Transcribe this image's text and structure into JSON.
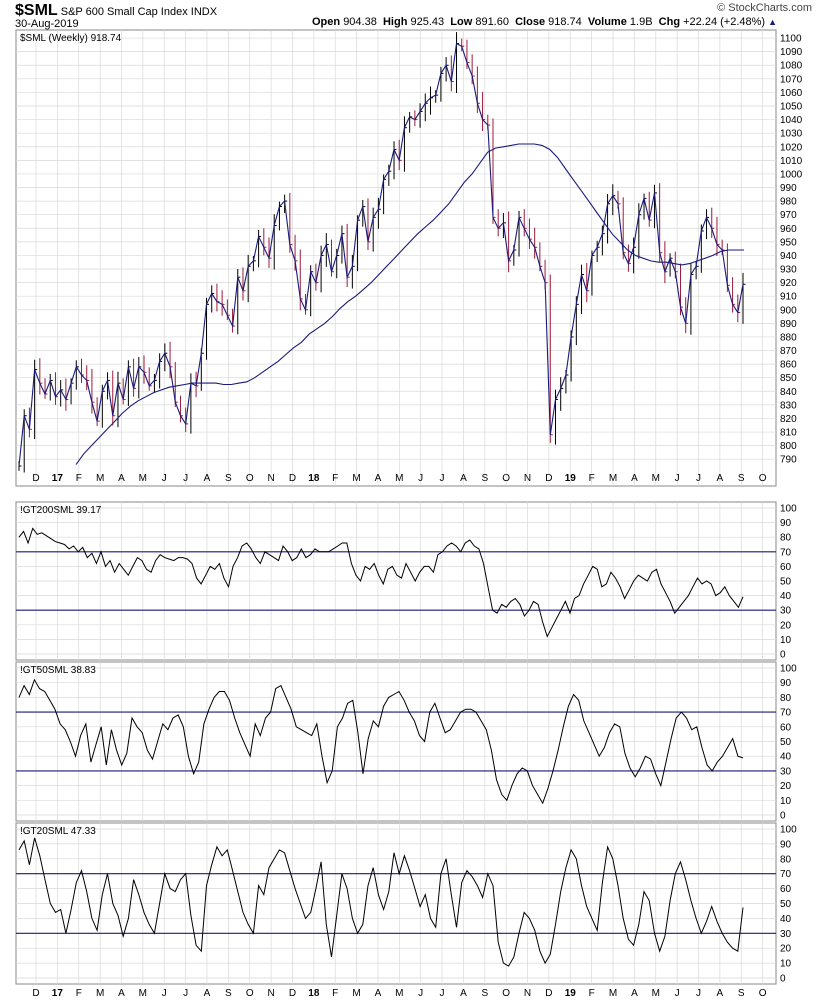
{
  "header": {
    "symbol": "$SML",
    "name": "S&P 600 Small Cap Index",
    "exchange": "INDX",
    "date": "30-Aug-2019",
    "open_label": "Open",
    "open_value": "904.38",
    "high_label": "High",
    "high_value": "925.43",
    "low_label": "Low",
    "low_value": "891.60",
    "close_label": "Close",
    "close_value": "918.74",
    "volume_label": "Volume",
    "volume_value": "1.9B",
    "chg_label": "Chg",
    "chg_value": "+22.24 (+2.48%)",
    "chg_icon": "up-triangle-icon",
    "brand": "© StockCharts.com"
  },
  "colors": {
    "price": "#1a1a7a",
    "ma": "#1a1a7a",
    "down_bar": "#9b1b3b",
    "hline": "#1a1a7a",
    "grid": "#d9d9d9",
    "indicator": "#000000"
  },
  "chart_data": [
    {
      "type": "line",
      "title": "$SML (Weekly) 918.74",
      "series": [
        {
          "name": "$SML (Weekly) 918.74",
          "values": [
            785,
            822,
            812,
            856,
            846,
            838,
            848,
            836,
            841,
            834,
            846,
            858,
            852,
            848,
            832,
            818,
            840,
            848,
            822,
            846,
            834,
            858,
            842,
            858,
            854,
            844,
            848,
            862,
            868,
            858,
            832,
            822,
            816,
            846,
            844,
            868,
            904,
            912,
            906,
            904,
            896,
            888,
            924,
            914,
            932,
            936,
            954,
            946,
            938,
            962,
            976,
            980,
            948,
            936,
            908,
            900,
            928,
            920,
            940,
            948,
            928,
            940,
            956,
            924,
            932,
            966,
            976,
            950,
            968,
            974,
            996,
            1002,
            1018,
            1010,
            1034,
            1042,
            1040,
            1046,
            1052,
            1056,
            1058,
            1074,
            1080,
            1068,
            1096,
            1094,
            1082,
            1072,
            1052,
            1040,
            1036,
            968,
            960,
            964,
            936,
            944,
            968,
            960,
            952,
            946,
            932,
            920,
            808,
            834,
            842,
            852,
            880,
            904,
            926,
            914,
            940,
            946,
            956,
            978,
            984,
            978,
            942,
            934,
            946,
            970,
            982,
            966,
            986,
            942,
            928,
            938,
            928,
            902,
            890,
            926,
            932,
            958,
            968,
            960,
            948,
            944,
            918,
            904,
            898,
            918.74
          ]
        }
      ],
      "ma_values": [
        786,
        794,
        800,
        806,
        812,
        818,
        824,
        829,
        833,
        836,
        839,
        841,
        843,
        844,
        845,
        846,
        846,
        846,
        846,
        845,
        845,
        846,
        847,
        850,
        854,
        858,
        862,
        867,
        872,
        876,
        882,
        886,
        890,
        895,
        901,
        906,
        910,
        915,
        920,
        926,
        932,
        938,
        944,
        950,
        956,
        961,
        966,
        972,
        978,
        986,
        994,
        1000,
        1008,
        1016,
        1019,
        1020,
        1021,
        1022,
        1022,
        1022,
        1021,
        1018,
        1012,
        1004,
        996,
        988,
        980,
        972,
        964,
        956,
        950,
        944,
        940,
        938,
        936,
        935,
        935,
        934,
        933,
        934,
        936,
        938,
        940,
        943,
        944,
        944,
        944
      ],
      "ylim": [
        785,
        1103
      ],
      "yticks": [
        790,
        800,
        810,
        820,
        830,
        840,
        850,
        860,
        870,
        880,
        890,
        900,
        910,
        920,
        930,
        940,
        950,
        960,
        970,
        980,
        990,
        1000,
        1010,
        1020,
        1030,
        1040,
        1050,
        1060,
        1070,
        1080,
        1090,
        1100
      ]
    },
    {
      "type": "line",
      "title": "!GT200SML 39.17",
      "series": [
        {
          "name": "!GT200SML 39.17",
          "values": [
            80,
            84,
            76,
            86,
            82,
            83,
            81,
            79,
            77,
            76,
            75,
            72,
            74,
            70,
            73,
            66,
            69,
            62,
            70,
            60,
            64,
            56,
            62,
            58,
            54,
            60,
            66,
            64,
            58,
            56,
            64,
            68,
            66,
            65,
            64,
            66,
            66,
            65,
            62,
            52,
            48,
            54,
            60,
            58,
            62,
            52,
            46,
            60,
            66,
            74,
            76,
            72,
            66,
            62,
            70,
            68,
            66,
            64,
            74,
            70,
            64,
            66,
            72,
            66,
            68,
            72,
            70,
            70,
            70,
            72,
            74,
            76,
            76,
            62,
            54,
            50,
            60,
            58,
            62,
            54,
            48,
            58,
            60,
            54,
            52,
            62,
            56,
            50,
            56,
            60,
            60,
            56,
            68,
            70,
            74,
            76,
            74,
            70,
            76,
            78,
            74,
            72,
            62,
            46,
            30,
            28,
            34,
            32,
            36,
            38,
            34,
            26,
            30,
            36,
            34,
            22,
            12,
            18,
            24,
            30,
            36,
            28,
            38,
            40,
            48,
            54,
            60,
            58,
            46,
            48,
            56,
            52,
            46,
            38,
            44,
            50,
            54,
            52,
            50,
            56,
            58,
            48,
            42,
            36,
            28,
            32,
            36,
            40,
            46,
            52,
            48,
            50,
            48,
            40,
            42,
            46,
            40,
            36,
            32,
            39.17
          ]
        }
      ],
      "hlines": [
        30,
        70
      ],
      "ylim": [
        0,
        100
      ],
      "yticks": [
        0,
        10,
        20,
        30,
        40,
        50,
        60,
        70,
        80,
        90,
        100
      ]
    },
    {
      "type": "line",
      "title": "!GT50SML 38.83",
      "series": [
        {
          "name": "!GT50SML 38.83",
          "values": [
            80,
            88,
            82,
            92,
            86,
            84,
            78,
            72,
            62,
            58,
            50,
            40,
            54,
            62,
            36,
            48,
            60,
            34,
            58,
            44,
            34,
            42,
            66,
            60,
            56,
            44,
            38,
            50,
            62,
            58,
            66,
            68,
            60,
            40,
            28,
            36,
            62,
            72,
            80,
            84,
            84,
            78,
            66,
            56,
            48,
            40,
            62,
            54,
            66,
            70,
            86,
            88,
            80,
            72,
            60,
            58,
            56,
            54,
            62,
            40,
            22,
            30,
            60,
            66,
            76,
            78,
            56,
            28,
            52,
            64,
            60,
            74,
            80,
            82,
            84,
            78,
            70,
            64,
            54,
            50,
            70,
            76,
            66,
            56,
            58,
            64,
            70,
            72,
            72,
            70,
            64,
            58,
            44,
            24,
            14,
            10,
            20,
            28,
            32,
            30,
            20,
            14,
            8,
            18,
            30,
            44,
            60,
            74,
            82,
            78,
            64,
            56,
            48,
            40,
            46,
            56,
            62,
            60,
            42,
            32,
            26,
            32,
            40,
            38,
            28,
            20,
            36,
            52,
            66,
            70,
            66,
            58,
            60,
            46,
            34,
            30,
            36,
            40,
            46,
            52,
            40,
            38.83
          ]
        }
      ],
      "hlines": [
        30,
        70
      ],
      "ylim": [
        0,
        100
      ],
      "yticks": [
        0,
        10,
        20,
        30,
        40,
        50,
        60,
        70,
        80,
        90,
        100
      ]
    },
    {
      "type": "line",
      "title": "!GT20SML 47.33",
      "series": [
        {
          "name": "!GT20SML 47.33",
          "values": [
            86,
            92,
            76,
            94,
            82,
            66,
            50,
            44,
            46,
            30,
            46,
            64,
            72,
            58,
            40,
            32,
            56,
            70,
            50,
            42,
            28,
            40,
            66,
            56,
            44,
            36,
            30,
            50,
            70,
            60,
            58,
            66,
            70,
            42,
            22,
            18,
            62,
            76,
            88,
            82,
            86,
            72,
            58,
            44,
            36,
            30,
            62,
            56,
            74,
            80,
            86,
            84,
            72,
            60,
            50,
            40,
            44,
            60,
            78,
            36,
            14,
            42,
            70,
            60,
            40,
            30,
            36,
            62,
            74,
            56,
            46,
            58,
            84,
            70,
            82,
            72,
            60,
            48,
            56,
            40,
            34,
            70,
            80,
            56,
            34,
            64,
            72,
            68,
            62,
            54,
            70,
            62,
            24,
            10,
            8,
            14,
            30,
            44,
            40,
            32,
            18,
            10,
            16,
            36,
            58,
            74,
            86,
            80,
            62,
            48,
            40,
            32,
            64,
            88,
            80,
            62,
            40,
            26,
            22,
            36,
            58,
            52,
            30,
            18,
            28,
            52,
            70,
            78,
            66,
            52,
            40,
            30,
            38,
            48,
            38,
            30,
            24,
            20,
            18,
            47.33
          ]
        }
      ],
      "hlines": [
        30,
        70
      ],
      "ylim": [
        0,
        100
      ],
      "yticks": [
        0,
        10,
        20,
        30,
        40,
        50,
        60,
        70,
        80,
        90,
        100
      ]
    }
  ],
  "xaxis": {
    "labels": [
      {
        "t": "D",
        "bold": false
      },
      {
        "t": "17",
        "bold": true
      },
      {
        "t": "F",
        "bold": false
      },
      {
        "t": "M",
        "bold": false
      },
      {
        "t": "A",
        "bold": false
      },
      {
        "t": "M",
        "bold": false
      },
      {
        "t": "J",
        "bold": false
      },
      {
        "t": "J",
        "bold": false
      },
      {
        "t": "A",
        "bold": false
      },
      {
        "t": "S",
        "bold": false
      },
      {
        "t": "O",
        "bold": false
      },
      {
        "t": "N",
        "bold": false
      },
      {
        "t": "D",
        "bold": false
      },
      {
        "t": "18",
        "bold": true
      },
      {
        "t": "F",
        "bold": false
      },
      {
        "t": "M",
        "bold": false
      },
      {
        "t": "A",
        "bold": false
      },
      {
        "t": "M",
        "bold": false
      },
      {
        "t": "J",
        "bold": false
      },
      {
        "t": "J",
        "bold": false
      },
      {
        "t": "A",
        "bold": false
      },
      {
        "t": "S",
        "bold": false
      },
      {
        "t": "O",
        "bold": false
      },
      {
        "t": "N",
        "bold": false
      },
      {
        "t": "D",
        "bold": false
      },
      {
        "t": "19",
        "bold": true
      },
      {
        "t": "F",
        "bold": false
      },
      {
        "t": "M",
        "bold": false
      },
      {
        "t": "A",
        "bold": false
      },
      {
        "t": "M",
        "bold": false
      },
      {
        "t": "J",
        "bold": false
      },
      {
        "t": "J",
        "bold": false
      },
      {
        "t": "A",
        "bold": false
      },
      {
        "t": "S",
        "bold": false
      },
      {
        "t": "O",
        "bold": false
      }
    ]
  }
}
